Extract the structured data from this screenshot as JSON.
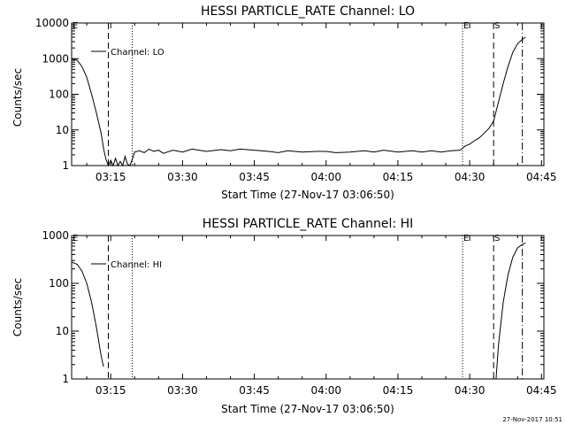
{
  "colors": {
    "background": "#ffffff",
    "foreground": "#000000"
  },
  "footer": {
    "stamp": "27-Nov-2017 10:51"
  },
  "chart_data": [
    {
      "type": "line",
      "title": "HESSI PARTICLE_RATE Channel: LO",
      "xlabel": "Start Time (27-Nov-17 03:06:50)",
      "ylabel": "Counts/sec",
      "y_scale": "log",
      "ylim": [
        1,
        10000
      ],
      "y_ticks": [
        "1",
        "10",
        "100",
        "1000",
        "10000"
      ],
      "xlim": [
        "03:06:50",
        "04:45:30"
      ],
      "x_ticks": [
        "03:15",
        "03:30",
        "03:45",
        "04:00",
        "04:15",
        "04:30",
        "04:45"
      ],
      "grid": false,
      "legend": {
        "label": "Channel: LO",
        "position": "upper-left"
      },
      "markers": [
        {
          "label": "E",
          "time": "03:06:50",
          "style": "none"
        },
        {
          "label": "",
          "time": "03:14:30",
          "style": "dashed"
        },
        {
          "label": "",
          "time": "03:19:30",
          "style": "dotted"
        },
        {
          "label": "E",
          "time": "04:28:30",
          "style": "dotted"
        },
        {
          "label": "S",
          "time": "04:35:00",
          "style": "dashed"
        },
        {
          "label": "",
          "time": "04:41:00",
          "style": "dash-dot"
        }
      ],
      "series": [
        {
          "name": "Channel: LO",
          "x": [
            "03:06:50",
            "03:08:00",
            "03:09:00",
            "03:10:00",
            "03:11:00",
            "03:12:00",
            "03:13:00",
            "03:13:30",
            "03:14:00",
            "03:14:30",
            "03:15:00",
            "03:15:30",
            "03:16:00",
            "03:16:30",
            "03:17:00",
            "03:17:30",
            "03:18:00",
            "03:18:30",
            "03:19:00",
            "03:19:30",
            "03:20:00",
            "03:21:00",
            "03:22:00",
            "03:23:00",
            "03:24:00",
            "03:25:00",
            "03:26:00",
            "03:28:00",
            "03:30:00",
            "03:32:00",
            "03:35:00",
            "03:38:00",
            "03:40:00",
            "03:42:00",
            "03:45:00",
            "03:48:00",
            "03:50:00",
            "03:52:00",
            "03:55:00",
            "03:58:00",
            "04:00:00",
            "04:02:00",
            "04:05:00",
            "04:08:00",
            "04:10:00",
            "04:12:00",
            "04:15:00",
            "04:18:00",
            "04:20:00",
            "04:22:00",
            "04:24:00",
            "04:26:00",
            "04:28:00",
            "04:29:00",
            "04:30:00",
            "04:31:00",
            "04:32:00",
            "04:33:00",
            "04:34:00",
            "04:35:00",
            "04:36:00",
            "04:37:00",
            "04:38:00",
            "04:39:00",
            "04:40:00",
            "04:41:00",
            "04:41:40"
          ],
          "values": [
            1000,
            900,
            600,
            300,
            100,
            30,
            8,
            3,
            1.5,
            1,
            1.4,
            1,
            1.6,
            1,
            1.3,
            1,
            1.8,
            1.1,
            1,
            1.5,
            2.4,
            2.6,
            2.3,
            2.9,
            2.5,
            2.7,
            2.2,
            2.7,
            2.4,
            2.9,
            2.5,
            2.8,
            2.6,
            2.9,
            2.7,
            2.5,
            2.3,
            2.6,
            2.4,
            2.5,
            2.5,
            2.3,
            2.4,
            2.6,
            2.4,
            2.7,
            2.4,
            2.6,
            2.4,
            2.6,
            2.4,
            2.6,
            2.7,
            3.5,
            4,
            5,
            6,
            8,
            11,
            18,
            60,
            200,
            600,
            1500,
            2600,
            3500,
            4000
          ]
        }
      ]
    },
    {
      "type": "line",
      "title": "HESSI PARTICLE_RATE Channel: HI",
      "xlabel": "Start Time (27-Nov-17 03:06:50)",
      "ylabel": "Counts/sec",
      "y_scale": "log",
      "ylim": [
        1,
        1000
      ],
      "y_ticks": [
        "1",
        "10",
        "100",
        "1000"
      ],
      "xlim": [
        "03:06:50",
        "04:45:30"
      ],
      "x_ticks": [
        "03:15",
        "03:30",
        "03:45",
        "04:00",
        "04:15",
        "04:30",
        "04:45"
      ],
      "grid": false,
      "legend": {
        "label": "Channel: HI",
        "position": "upper-left"
      },
      "markers": [
        {
          "label": "E",
          "time": "03:06:50",
          "style": "none"
        },
        {
          "label": "",
          "time": "03:14:30",
          "style": "dashed"
        },
        {
          "label": "",
          "time": "03:19:30",
          "style": "dotted"
        },
        {
          "label": "E",
          "time": "04:28:30",
          "style": "dotted"
        },
        {
          "label": "S",
          "time": "04:35:00",
          "style": "dashed"
        },
        {
          "label": "",
          "time": "04:41:00",
          "style": "dash-dot"
        }
      ],
      "series": [
        {
          "name": "Channel: HI",
          "x": [
            "03:06:50",
            "03:08:00",
            "03:09:00",
            "03:10:00",
            "03:11:00",
            "03:12:00",
            "03:12:30",
            "03:13:00",
            "03:13:30"
          ],
          "values": [
            280,
            250,
            180,
            100,
            40,
            12,
            6,
            3,
            1.8
          ]
        },
        {
          "name": "Channel: HI",
          "x": [
            "04:35:30",
            "04:36:00",
            "04:37:00",
            "04:38:00",
            "04:39:00",
            "04:40:00",
            "04:41:00",
            "04:41:40"
          ],
          "values": [
            1,
            5,
            40,
            150,
            350,
            550,
            650,
            700
          ]
        }
      ]
    }
  ]
}
